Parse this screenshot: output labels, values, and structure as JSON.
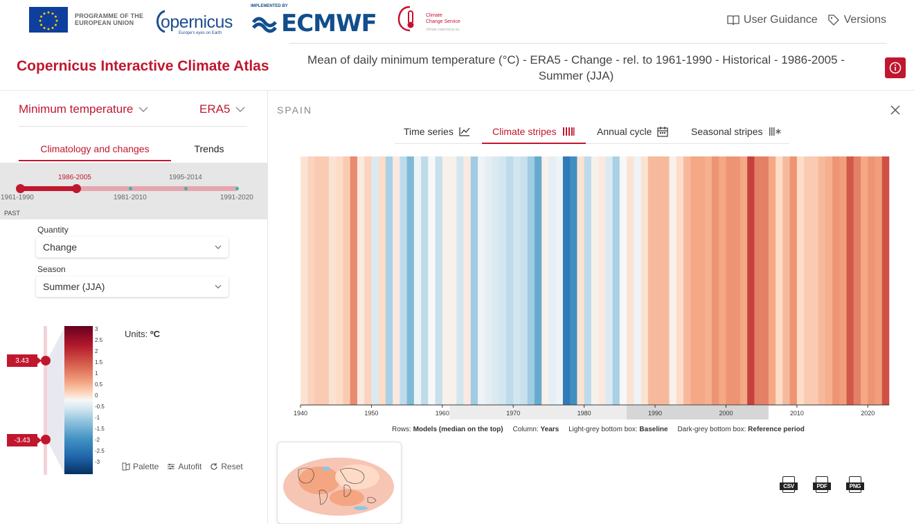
{
  "header": {
    "programme_text_line1": "PROGRAMME OF THE",
    "programme_text_line2": "EUROPEAN UNION",
    "copernicus_logo": "opernicus",
    "copernicus_sub": "Europe's eyes on Earth",
    "ecmwf_implemented": "IMPLEMENTED BY",
    "ecmwf_logo": "ECMWF",
    "ccs_line1": "Climate",
    "ccs_line2": "Change Service",
    "ccs_url": "climate.copernicus.eu",
    "links": [
      {
        "label": "User Guidance",
        "icon": "book-icon"
      },
      {
        "label": "Versions",
        "icon": "tag-icon"
      }
    ]
  },
  "app_title": "Copernicus Interactive Climate Atlas",
  "map_title": "Mean of daily minimum temperature (°C) - ERA5 - Change - rel. to 1961-1990 - Historical - 1986-2005 - Summer (JJA)",
  "left_panel": {
    "variable": "Minimum temperature",
    "dataset": "ERA5",
    "tabs": [
      "Climatology and changes",
      "Trends"
    ],
    "active_tab": "Climatology and changes",
    "periods": {
      "selected": "1986-2005",
      "labels_top": [
        "1986-2005",
        "1995-2014"
      ],
      "labels_bottom": [
        "1961-1990",
        "1981-2010",
        "1991-2020"
      ],
      "group": "PAST"
    },
    "quantity_label": "Quantity",
    "quantity_value": "Change",
    "season_label": "Season",
    "season_value": "Summer (JJA)",
    "range_max": "3.43",
    "range_min": "-3.43",
    "colorbar_ticks": [
      "3",
      "2.5",
      "2",
      "1.5",
      "1",
      "0.5",
      "0",
      "-0.5",
      "-1",
      "-1.5",
      "-2",
      "-2.5",
      "-3"
    ],
    "units_label": "Units:",
    "units_value": "ºC",
    "actions": [
      "Palette",
      "Autofit",
      "Reset"
    ]
  },
  "main": {
    "region": "SPAIN",
    "view_tabs": [
      {
        "label": "Time series",
        "icon": "line-chart-icon"
      },
      {
        "label": "Climate stripes",
        "icon": "stripes-icon"
      },
      {
        "label": "Annual cycle",
        "icon": "calendar-icon"
      },
      {
        "label": "Seasonal stripes",
        "icon": "seasonal-stripes-icon"
      }
    ],
    "active_view": "Climate stripes",
    "legend": {
      "rows_label": "Rows:",
      "rows_value": "Models (median on the top)",
      "column_label": "Column:",
      "column_value": "Years",
      "light_label": "Light-grey bottom box:",
      "light_value": "Baseline",
      "dark_label": "Dark-grey bottom box:",
      "dark_value": "Reference period"
    },
    "downloads": [
      "CSV",
      "PDF",
      "PNG"
    ]
  },
  "chart_data": {
    "type": "heatmap",
    "x_label": "",
    "x_range": [
      1940,
      2023
    ],
    "x_ticks": [
      1940,
      1950,
      1960,
      1970,
      1980,
      1990,
      2000,
      2010,
      2020
    ],
    "baseline_period": [
      1961,
      1990
    ],
    "reference_period": [
      1986,
      2005
    ],
    "colorscale_range": [
      -3.43,
      3.43
    ],
    "years": [
      1940,
      1941,
      1942,
      1943,
      1944,
      1945,
      1946,
      1947,
      1948,
      1949,
      1950,
      1951,
      1952,
      1953,
      1954,
      1955,
      1956,
      1957,
      1958,
      1959,
      1960,
      1961,
      1962,
      1963,
      1964,
      1965,
      1966,
      1967,
      1968,
      1969,
      1970,
      1971,
      1972,
      1973,
      1974,
      1975,
      1976,
      1977,
      1978,
      1979,
      1980,
      1981,
      1982,
      1983,
      1984,
      1985,
      1986,
      1987,
      1988,
      1989,
      1990,
      1991,
      1992,
      1993,
      1994,
      1995,
      1996,
      1997,
      1998,
      1999,
      2000,
      2001,
      2002,
      2003,
      2004,
      2005,
      2006,
      2007,
      2008,
      2009,
      2010,
      2011,
      2012,
      2013,
      2014,
      2015,
      2016,
      2017,
      2018,
      2019,
      2020,
      2021,
      2022
    ],
    "values": [
      0.3,
      0.5,
      0.6,
      0.6,
      0.3,
      0.4,
      0.6,
      1.3,
      0.2,
      0.5,
      -0.3,
      0.4,
      -0.8,
      0.2,
      -0.6,
      -1.2,
      -0.1,
      -0.6,
      0.0,
      -0.5,
      0.1,
      0.1,
      -0.4,
      0.2,
      -0.9,
      -0.1,
      -0.2,
      -0.3,
      -0.4,
      -0.6,
      -0.4,
      -0.5,
      -0.9,
      -1.4,
      0.1,
      -0.2,
      -0.1,
      -2.2,
      -1.8,
      0.3,
      -0.6,
      0.1,
      0.2,
      -0.3,
      -0.8,
      0.0,
      0.3,
      -0.1,
      0.3,
      0.8,
      0.8,
      0.8,
      0.1,
      0.4,
      0.8,
      1.0,
      1.0,
      0.9,
      1.2,
      1.0,
      1.2,
      1.2,
      1.0,
      2.1,
      1.4,
      1.4,
      1.0,
      0.4,
      0.8,
      1.2,
      0.4,
      0.6,
      0.6,
      0.8,
      0.9,
      1.2,
      1.1,
      1.8,
      1.4,
      1.0,
      1.2,
      1.1,
      1.9
    ]
  }
}
